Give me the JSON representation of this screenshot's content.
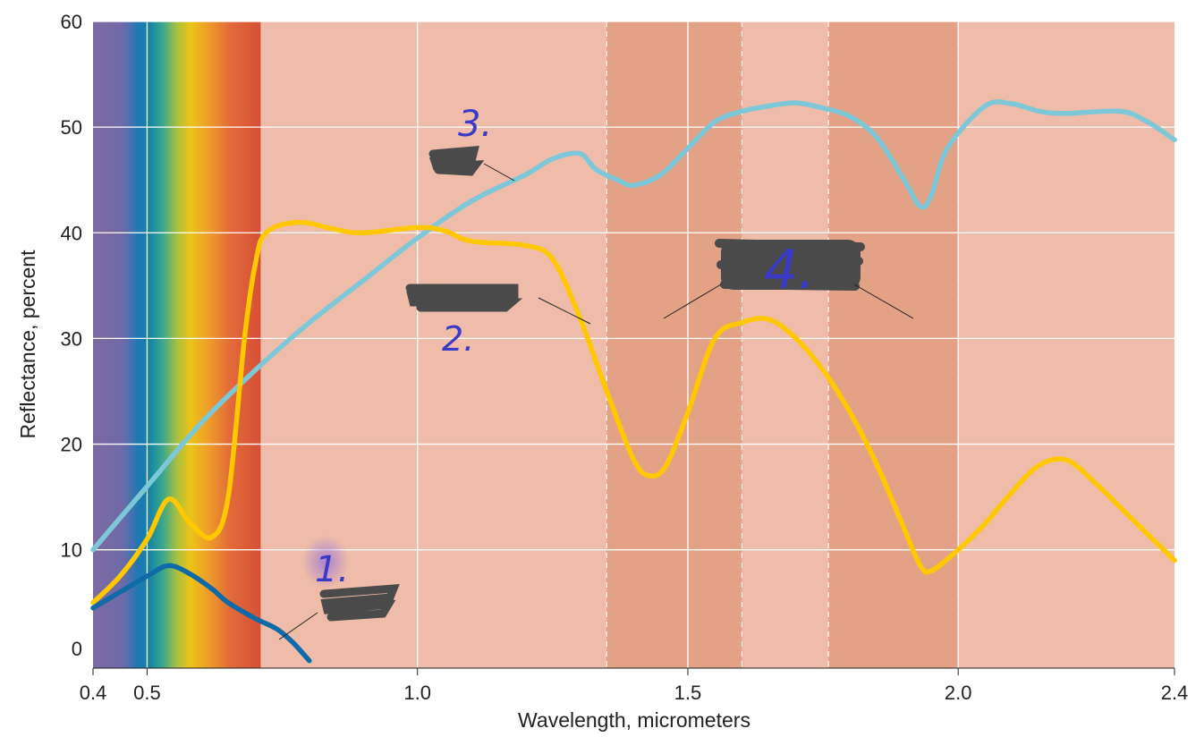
{
  "chart_data": {
    "type": "line",
    "xlabel": "Wavelength, micrometers",
    "ylabel": "Reflectance, percent",
    "xlim": [
      0.4,
      2.4
    ],
    "ylim": [
      -1.2,
      60
    ],
    "xticks": [
      {
        "value": 0.4,
        "label": "0.4"
      },
      {
        "value": 0.5,
        "label": "0.5"
      },
      {
        "value": 1.0,
        "label": "1.0"
      },
      {
        "value": 1.5,
        "label": "1.5"
      },
      {
        "value": 2.0,
        "label": "2.0"
      },
      {
        "value": 2.4,
        "label": "2.4"
      }
    ],
    "yticks": [
      {
        "value": 0,
        "label": "0"
      },
      {
        "value": 10,
        "label": "10"
      },
      {
        "value": 20,
        "label": "20"
      },
      {
        "value": 30,
        "label": "30"
      },
      {
        "value": 40,
        "label": "40"
      },
      {
        "value": 50,
        "label": "50"
      },
      {
        "value": 60,
        "label": "60"
      }
    ],
    "grid": true,
    "visible_spectrum": [
      0.4,
      0.71
    ],
    "absorption_bands": [
      [
        1.35,
        1.6
      ],
      [
        1.76,
        2.0
      ]
    ],
    "dashed_lines": [
      1.35,
      1.6,
      1.76,
      2.0
    ],
    "series": [
      {
        "color": "#7cc8d8",
        "x": [
          0.4,
          0.5,
          0.6,
          0.7,
          0.8,
          0.9,
          1.0,
          1.1,
          1.2,
          1.25,
          1.3,
          1.33,
          1.37,
          1.4,
          1.45,
          1.5,
          1.55,
          1.6,
          1.65,
          1.7,
          1.75,
          1.8,
          1.85,
          1.9,
          1.93,
          1.95,
          1.98,
          2.05,
          2.1,
          2.15,
          2.2,
          2.3,
          2.35,
          2.4
        ],
        "y": [
          10,
          16,
          22,
          27,
          31.5,
          35.5,
          39.5,
          43,
          45.5,
          47,
          47.5,
          46,
          45,
          44.5,
          45.5,
          48,
          50.5,
          51.5,
          52,
          52.3,
          51.8,
          51,
          49,
          45,
          42.5,
          43.5,
          48,
          52,
          52.2,
          51.5,
          51.3,
          51.5,
          50.5,
          48.8
        ]
      },
      {
        "color": "#ffc800",
        "x": [
          0.4,
          0.45,
          0.5,
          0.54,
          0.58,
          0.62,
          0.65,
          0.68,
          0.7,
          0.72,
          0.78,
          0.85,
          0.9,
          1.0,
          1.05,
          1.1,
          1.2,
          1.25,
          1.3,
          1.35,
          1.4,
          1.43,
          1.46,
          1.5,
          1.55,
          1.6,
          1.65,
          1.7,
          1.75,
          1.8,
          1.85,
          1.9,
          1.93,
          1.95,
          2.0,
          2.05,
          2.1,
          2.15,
          2.2,
          2.25,
          2.3,
          2.35,
          2.4
        ],
        "y": [
          5,
          7.5,
          11,
          14.8,
          12.5,
          11.2,
          15,
          30,
          37,
          40,
          41,
          40.3,
          40,
          40.5,
          40.2,
          39.2,
          38.8,
          37.5,
          32,
          25,
          18.5,
          17,
          18,
          23,
          30,
          31.5,
          31.8,
          30,
          27,
          23,
          18,
          12,
          8.5,
          8,
          10,
          12.5,
          15.5,
          18,
          18.5,
          16.5,
          14,
          11.5,
          9
        ]
      },
      {
        "color": "#0f6aa8",
        "x": [
          0.4,
          0.45,
          0.5,
          0.54,
          0.58,
          0.62,
          0.65,
          0.7,
          0.74,
          0.77,
          0.8
        ],
        "y": [
          4.5,
          6,
          7.5,
          8.5,
          7.7,
          6.3,
          5,
          3.5,
          2.5,
          1.2,
          -0.5
        ]
      }
    ]
  },
  "annotations": {
    "marker_1": "1.",
    "marker_2": "2.",
    "marker_3": "3.",
    "marker_4": "4."
  },
  "colors": {
    "background": "#eebca8",
    "band": "#e3a285",
    "grid": "#ffffff"
  }
}
